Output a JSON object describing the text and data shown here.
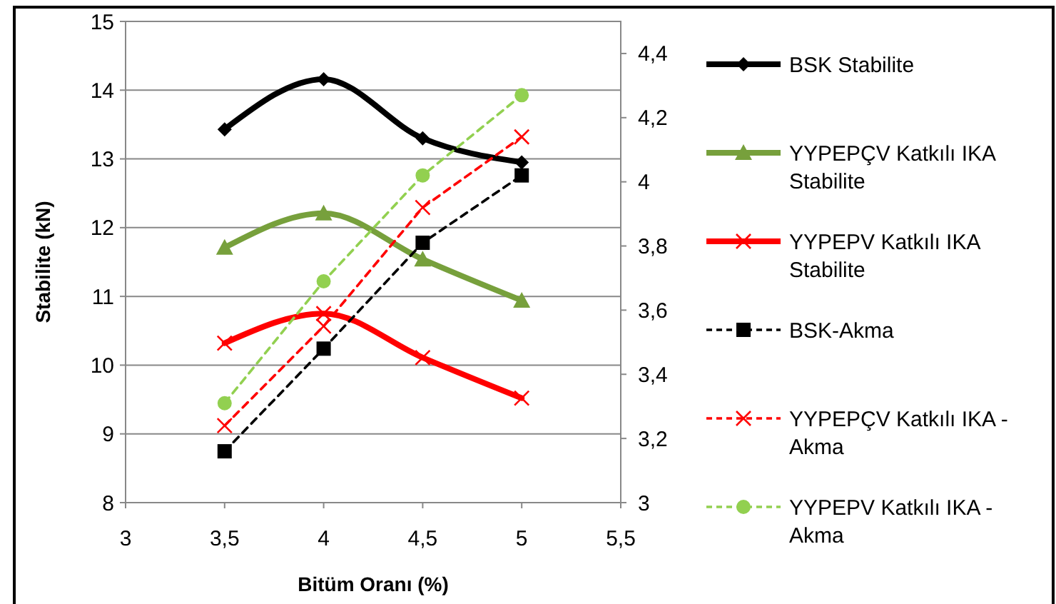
{
  "chart_data": {
    "type": "line",
    "xlabel": "Bitüm Oranı (%)",
    "ylabel": "Stabilite (kN)",
    "x": [
      3.5,
      4,
      4.5,
      5
    ],
    "xlim": [
      3,
      5.5
    ],
    "xticks": [
      3,
      {
        "value": 3.5,
        "label": "3,5"
      },
      4,
      {
        "value": 4.5,
        "label": "4,5"
      },
      5,
      {
        "value": 5.5,
        "label": "5,5"
      }
    ],
    "ylim": [
      8,
      15
    ],
    "yticks": [
      8,
      9,
      10,
      11,
      12,
      13,
      14,
      15
    ],
    "y2lim": [
      3,
      4.5
    ],
    "y2ticks": [
      3,
      {
        "value": 3.2,
        "label": "3,2"
      },
      {
        "value": 3.4,
        "label": "3,4"
      },
      {
        "value": 3.6,
        "label": "3,6"
      },
      {
        "value": 3.8,
        "label": "3,8"
      },
      4,
      {
        "value": 4.2,
        "label": "4,2"
      },
      {
        "value": 4.4,
        "label": "4,4"
      }
    ],
    "grid": "y",
    "legend": "right",
    "series": [
      {
        "name": "BSK Stabilite",
        "color": "#000000",
        "values": [
          13.43,
          14.16,
          13.3,
          12.95
        ],
        "marker": "diamond",
        "line_style": "solid"
      },
      {
        "name": "YYPEPÇV Katkılı IKA Stabilite",
        "color": "#77a03c",
        "values": [
          11.71,
          12.21,
          11.54,
          10.94
        ],
        "marker": "triangle",
        "line_style": "solid"
      },
      {
        "name": "YYPEPV Katkılı IKA Stabilite",
        "color": "#ff0000",
        "values": [
          10.32,
          10.75,
          10.11,
          9.52
        ],
        "marker": "cross",
        "line_style": "solid"
      },
      {
        "name": "BSK-Akma",
        "color": "#000000",
        "values": [
          3.16,
          3.48,
          3.81,
          4.02
        ],
        "marker": "square",
        "line_style": "dashed",
        "axis": "y2"
      },
      {
        "name": "YYPEPÇV Katkılı IKA - Akma",
        "color": "#ff0000",
        "values": [
          3.24,
          3.55,
          3.92,
          4.14
        ],
        "marker": "cross",
        "line_style": "dashed",
        "axis": "y2"
      },
      {
        "name": "YYPEPV Katkılı IKA - Akma",
        "color": "#92d050",
        "values": [
          3.31,
          3.69,
          4.02,
          4.27
        ],
        "marker": "circle",
        "line_style": "dashed",
        "axis": "y2"
      }
    ]
  }
}
